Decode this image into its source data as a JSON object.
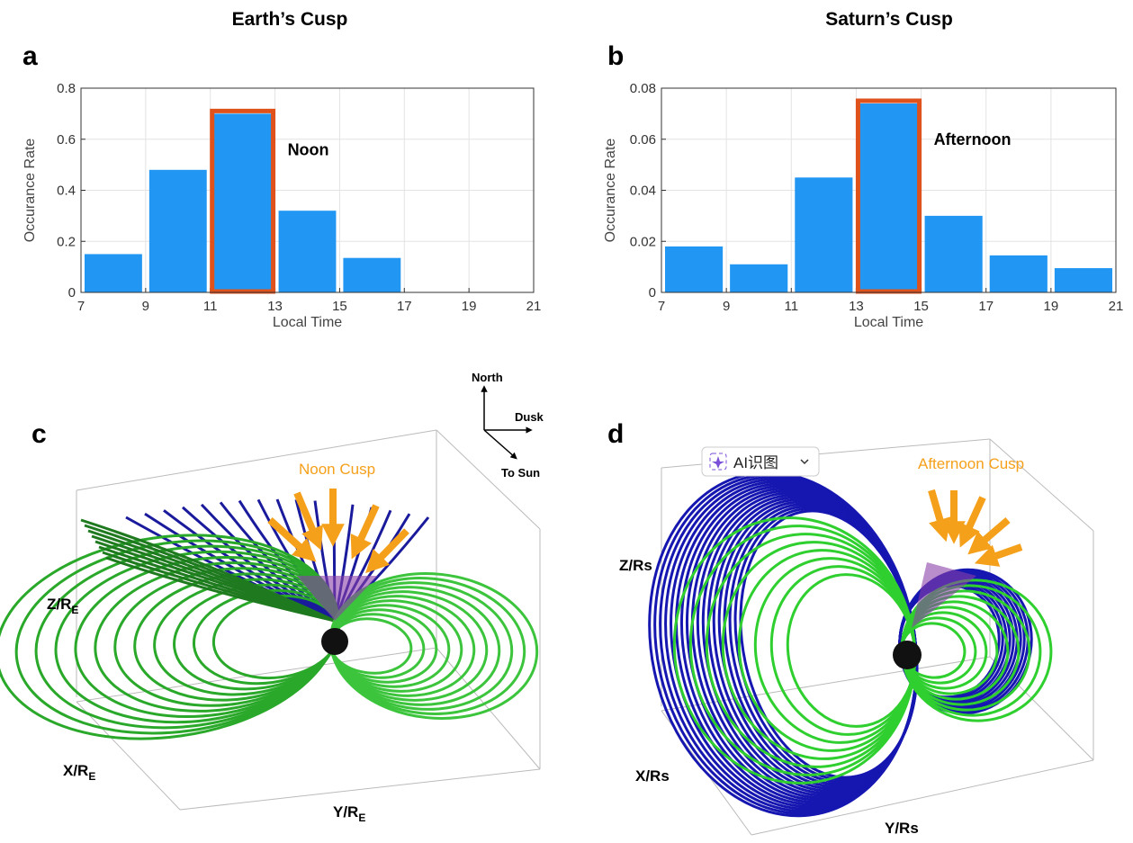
{
  "chart_data": [
    {
      "type": "histogram",
      "panel_label": "a",
      "title": "Earth’s Cusp",
      "x_label": "Local Time",
      "y_label": "Occurance Rate",
      "bins": [
        7,
        9,
        11,
        13,
        15,
        17,
        19,
        21
      ],
      "values": [
        0.15,
        0.48,
        0.7,
        0.32,
        0.135,
        0,
        0
      ],
      "color": "#2196f3",
      "xlim": [
        7,
        21
      ],
      "xticks": [
        7,
        9,
        11,
        13,
        15,
        17,
        19,
        21
      ],
      "ylim": [
        0,
        0.8
      ],
      "yticks": [
        0,
        0.2,
        0.4,
        0.6,
        0.8
      ],
      "grid": true,
      "highlight": {
        "bin": 2,
        "label": "Noon",
        "color": "#e0521c"
      }
    },
    {
      "type": "histogram",
      "panel_label": "b",
      "title": "Saturn’s Cusp",
      "x_label": "Local Time",
      "y_label": "Occurance Rate",
      "bins": [
        7,
        9,
        11,
        13,
        15,
        17,
        19,
        21
      ],
      "values": [
        0.018,
        0.011,
        0.045,
        0.074,
        0.03,
        0.0145,
        0.0095
      ],
      "color": "#2196f3",
      "xlim": [
        7,
        21
      ],
      "xticks": [
        7,
        9,
        11,
        13,
        15,
        17,
        19,
        21
      ],
      "ylim": [
        0,
        0.08
      ],
      "yticks": [
        0,
        0.02,
        0.04,
        0.06,
        0.08
      ],
      "grid": true,
      "highlight": {
        "bin": 3,
        "label": "Afternoon",
        "color": "#e0521c"
      }
    }
  ],
  "panels": {
    "c": {
      "label": "c",
      "annotation": "Noon Cusp",
      "z_axis": {
        "text": "Z/R",
        "sub": "E"
      },
      "x_axis": {
        "text": "X/R",
        "sub": "E"
      },
      "y_axis": {
        "text": "Y/R",
        "sub": "E"
      }
    },
    "d": {
      "label": "d",
      "annotation": "Afternoon Cusp",
      "z_axis": "Z/Rs",
      "x_axis": "X/Rs",
      "y_axis": "Y/Rs"
    }
  },
  "compass": {
    "north": "North",
    "dusk": "Dusk",
    "sun": "To Sun"
  },
  "toolbar": {
    "button": "AI识图"
  }
}
